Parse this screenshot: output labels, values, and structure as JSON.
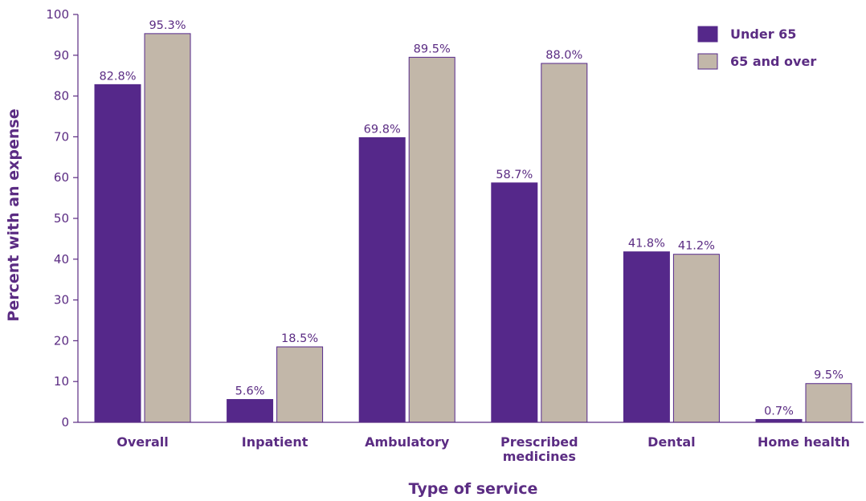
{
  "chart_data": {
    "type": "bar",
    "title": "",
    "xlabel": "Type of service",
    "ylabel": "Percent with an expense",
    "ylim": [
      0,
      100
    ],
    "yticks": [
      0,
      10,
      20,
      30,
      40,
      50,
      60,
      70,
      80,
      90,
      100
    ],
    "grid": false,
    "legend_position": "top-right",
    "categories": [
      [
        "Overall"
      ],
      [
        "Inpatient"
      ],
      [
        "Ambulatory"
      ],
      [
        "Prescribed",
        "medicines"
      ],
      [
        "Dental"
      ],
      [
        "Home health"
      ]
    ],
    "series": [
      {
        "name": "Under 65",
        "color": "#55288a",
        "values": [
          82.8,
          5.6,
          69.8,
          58.7,
          41.8,
          0.7
        ],
        "labels": [
          "82.8%",
          "5.6%",
          "69.8%",
          "58.7%",
          "41.8%",
          "0.7%"
        ]
      },
      {
        "name": "65 and over",
        "color": "#c2b7a9",
        "values": [
          95.3,
          18.5,
          89.5,
          88.0,
          41.2,
          9.5
        ],
        "labels": [
          "95.3%",
          "18.5%",
          "89.5%",
          "88.0%",
          "41.2%",
          "9.5%"
        ]
      }
    ],
    "text_color": "#5b2c83",
    "bar_outline_color": "#55288a"
  }
}
